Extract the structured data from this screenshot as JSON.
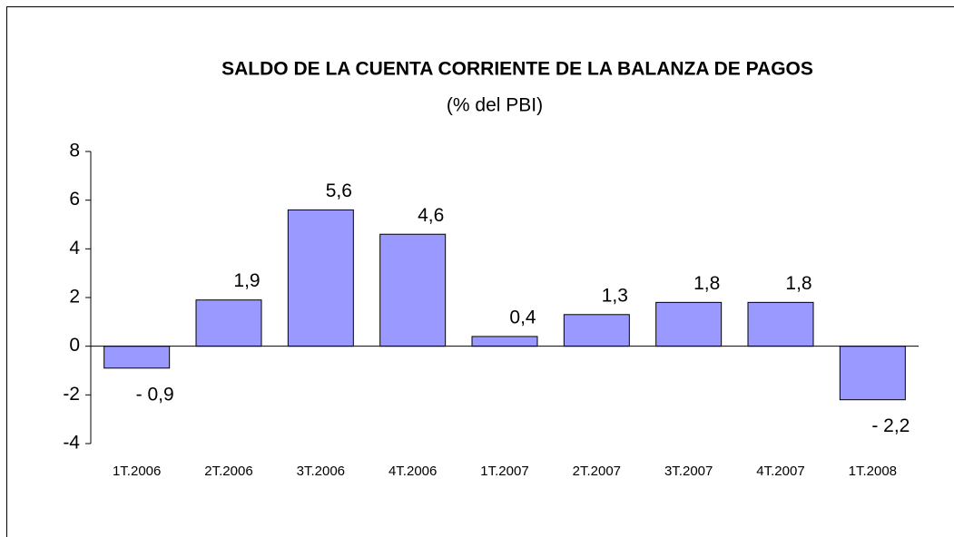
{
  "chart_data": {
    "type": "bar",
    "title": "SALDO DE LA CUENTA CORRIENTE DE LA BALANZA DE PAGOS",
    "subtitle": "(% del PBI)",
    "categories": [
      "1T.2006",
      "2T.2006",
      "3T.2006",
      "4T.2006",
      "1T.2007",
      "2T.2007",
      "3T.2007",
      "4T.2007",
      "1T.2008"
    ],
    "values": [
      -0.9,
      1.9,
      5.6,
      4.6,
      0.4,
      1.3,
      1.8,
      1.8,
      -2.2
    ],
    "value_labels": [
      "- 0,9",
      "1,9",
      "5,6",
      "4,6",
      "0,4",
      "1,3",
      "1,8",
      "1,8",
      "- 2,2"
    ],
    "color": "#9999ff",
    "ylim": [
      -4,
      8
    ],
    "yticks": [
      -4,
      -2,
      0,
      2,
      4,
      6,
      8
    ],
    "grid": false
  }
}
